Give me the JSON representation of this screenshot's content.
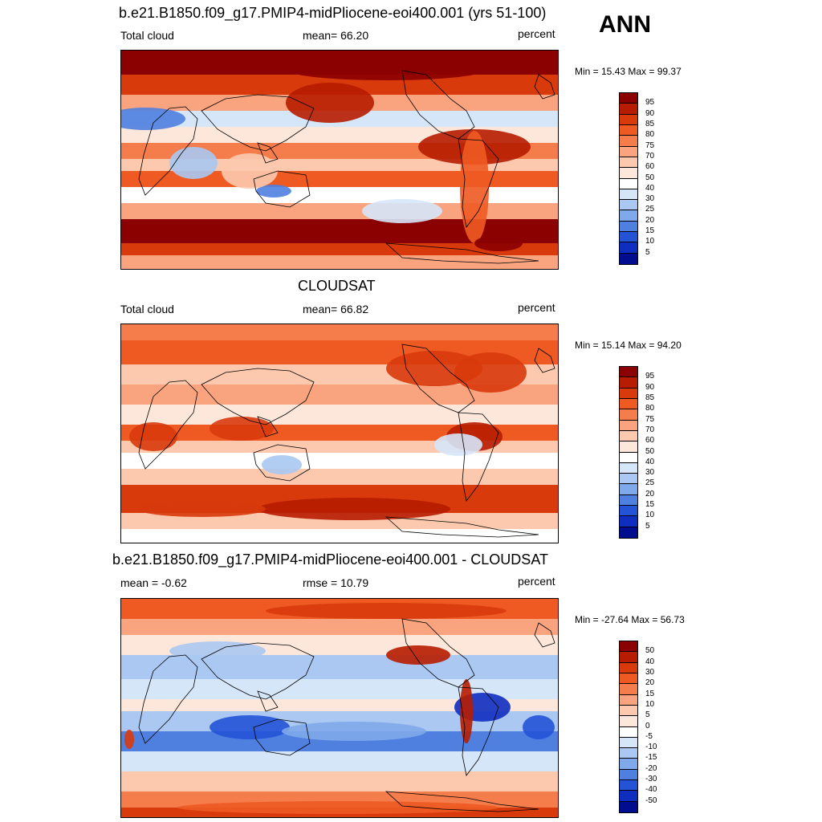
{
  "header": {
    "season": "ANN"
  },
  "panels": [
    {
      "title": "b.e21.B1850.f09_g17.PMIP4-midPliocene-eoi400.001 (yrs 51-100)",
      "left": "Total cloud",
      "center": "mean=  66.20",
      "right": "percent",
      "minmax": "Min =  15.43 Max =  99.37",
      "map_kind": "model",
      "colorbar": {
        "labels": [
          "95",
          "90",
          "85",
          "80",
          "75",
          "70",
          "60",
          "50",
          "40",
          "30",
          "25",
          "20",
          "15",
          "10",
          "5"
        ],
        "colors": [
          "#8b0000",
          "#b71c00",
          "#d83a0c",
          "#ee5a22",
          "#f57d4b",
          "#f9a47f",
          "#fcc9ae",
          "#fde7da",
          "#ffffff",
          "#d6e6f9",
          "#aac8f1",
          "#7fa9ea",
          "#4f80e0",
          "#2453d6",
          "#0f2ec0",
          "#000d8f"
        ]
      }
    },
    {
      "title": "CLOUDSAT",
      "left": "Total cloud",
      "center": "mean=  66.82",
      "right": "percent",
      "minmax": "Min =  15.14 Max =  94.20",
      "map_kind": "obs",
      "colorbar": {
        "labels": [
          "95",
          "90",
          "85",
          "80",
          "75",
          "70",
          "60",
          "50",
          "40",
          "30",
          "25",
          "20",
          "15",
          "10",
          "5"
        ],
        "colors": [
          "#8b0000",
          "#b71c00",
          "#d83a0c",
          "#ee5a22",
          "#f57d4b",
          "#f9a47f",
          "#fcc9ae",
          "#fde7da",
          "#ffffff",
          "#d6e6f9",
          "#aac8f1",
          "#7fa9ea",
          "#4f80e0",
          "#2453d6",
          "#0f2ec0",
          "#000d8f"
        ]
      }
    },
    {
      "title": "b.e21.B1850.f09_g17.PMIP4-midPliocene-eoi400.001 - CLOUDSAT",
      "left": "mean =  -0.62",
      "center": "rmse =  10.79",
      "right": "percent",
      "minmax": "Min = -27.64 Max =  56.73",
      "map_kind": "diff",
      "colorbar": {
        "labels": [
          "50",
          "40",
          "30",
          "20",
          "15",
          "10",
          "5",
          "0",
          "-5",
          "-10",
          "-15",
          "-20",
          "-30",
          "-40",
          "-50"
        ],
        "colors": [
          "#8b0000",
          "#b71c00",
          "#d83a0c",
          "#ee5a22",
          "#f57d4b",
          "#f9a47f",
          "#fcc9ae",
          "#fde7da",
          "#ffffff",
          "#d6e6f9",
          "#aac8f1",
          "#7fa9ea",
          "#4f80e0",
          "#2453d6",
          "#0f2ec0",
          "#000d8f"
        ]
      }
    }
  ]
}
